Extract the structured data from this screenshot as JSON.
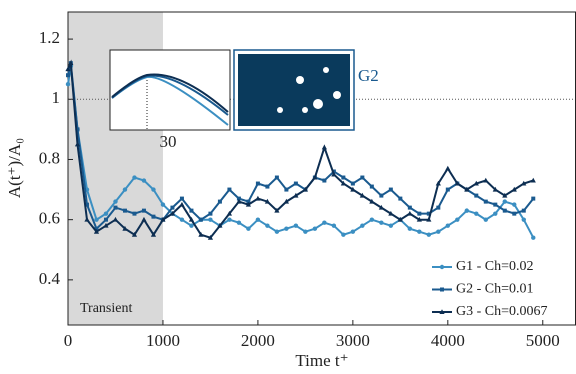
{
  "chart_data": {
    "type": "line",
    "xlabel": "Time t⁺",
    "ylabel": "A(t⁺)/A₀",
    "x": [
      0,
      30,
      100,
      200,
      300,
      400,
      500,
      600,
      700,
      800,
      900,
      1000,
      1100,
      1200,
      1300,
      1400,
      1500,
      1600,
      1700,
      1800,
      1900,
      2000,
      2100,
      2200,
      2300,
      2400,
      2500,
      2600,
      2700,
      2800,
      2900,
      3000,
      3100,
      3200,
      3300,
      3400,
      3500,
      3600,
      3700,
      3800,
      3900,
      4000,
      4100,
      4200,
      4300,
      4400,
      4500,
      4600,
      4700,
      4800,
      4900
    ],
    "series": [
      {
        "name": "G1 - Ch=0.02",
        "color": "#3b8fc2",
        "marker": "circle",
        "values": [
          1.05,
          1.11,
          0.9,
          0.7,
          0.6,
          0.62,
          0.66,
          0.7,
          0.74,
          0.73,
          0.7,
          0.65,
          0.62,
          0.6,
          0.58,
          0.6,
          0.6,
          0.58,
          0.6,
          0.59,
          0.57,
          0.6,
          0.58,
          0.56,
          0.57,
          0.58,
          0.56,
          0.57,
          0.59,
          0.58,
          0.55,
          0.56,
          0.58,
          0.6,
          0.59,
          0.58,
          0.6,
          0.57,
          0.56,
          0.55,
          0.56,
          0.58,
          0.6,
          0.63,
          0.62,
          0.6,
          0.62,
          0.66,
          0.65,
          0.6,
          0.54
        ]
      },
      {
        "name": "G2 - Ch=0.01",
        "color": "#1a5a8f",
        "marker": "square",
        "values": [
          1.08,
          1.12,
          0.9,
          0.65,
          0.57,
          0.6,
          0.64,
          0.63,
          0.62,
          0.63,
          0.61,
          0.6,
          0.64,
          0.67,
          0.63,
          0.6,
          0.62,
          0.66,
          0.7,
          0.67,
          0.66,
          0.72,
          0.71,
          0.74,
          0.7,
          0.72,
          0.7,
          0.74,
          0.73,
          0.76,
          0.74,
          0.72,
          0.74,
          0.71,
          0.68,
          0.7,
          0.67,
          0.64,
          0.62,
          0.62,
          0.64,
          0.7,
          0.72,
          0.7,
          0.68,
          0.66,
          0.65,
          0.63,
          0.62,
          0.63,
          0.67
        ]
      },
      {
        "name": "G3 - Ch=0.0067",
        "color": "#0d2e52",
        "marker": "triangle",
        "values": [
          1.1,
          1.12,
          0.85,
          0.6,
          0.56,
          0.58,
          0.6,
          0.57,
          0.55,
          0.6,
          0.55,
          0.6,
          0.62,
          0.65,
          0.6,
          0.55,
          0.54,
          0.58,
          0.62,
          0.66,
          0.65,
          0.67,
          0.66,
          0.63,
          0.66,
          0.68,
          0.7,
          0.74,
          0.84,
          0.75,
          0.72,
          0.7,
          0.68,
          0.66,
          0.64,
          0.62,
          0.6,
          0.62,
          0.6,
          0.6,
          0.72,
          0.77,
          0.72,
          0.7,
          0.72,
          0.73,
          0.7,
          0.68,
          0.7,
          0.72,
          0.73
        ]
      }
    ],
    "xlim": [
      0,
      5350
    ],
    "ylim": [
      0.25,
      1.29
    ],
    "xticks": [
      0,
      1000,
      2000,
      3000,
      4000,
      5000
    ],
    "yticks": [
      0.4,
      0.6,
      0.8,
      1,
      1.2
    ],
    "shaded_region": [
      0,
      1000
    ],
    "reference_line": 1,
    "legend": "lower right",
    "annotations": [
      "Transient",
      "30",
      "G2"
    ]
  }
}
